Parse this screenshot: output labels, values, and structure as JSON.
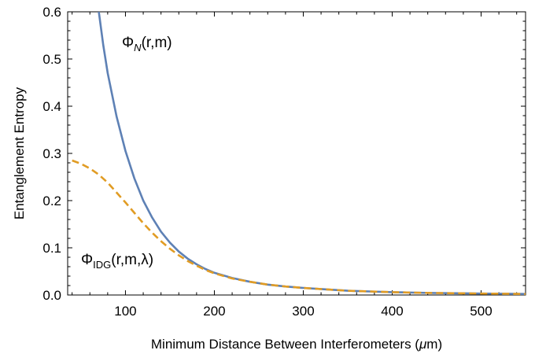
{
  "chart_data": {
    "type": "line",
    "xlabel_main": "Minimum Distance Between Interferometers (",
    "xlabel_mu": "μ",
    "xlabel_tail": "m)",
    "ylabel": "Entanglement Entropy",
    "xlim": [
      35,
      550
    ],
    "ylim": [
      0,
      0.6
    ],
    "x_ticks": [
      100,
      200,
      300,
      400,
      500
    ],
    "y_ticks": [
      0.0,
      0.1,
      0.2,
      0.3,
      0.4,
      0.5,
      0.6
    ],
    "y_tick_labels": [
      "0.0",
      "0.1",
      "0.2",
      "0.3",
      "0.4",
      "0.5",
      "0.6"
    ],
    "grid": false,
    "series": [
      {
        "label_base": "Φ",
        "label_sub": "N",
        "label_args": "(r,m)",
        "color": "#5E81B5",
        "dash": "solid",
        "x": [
          70,
          75,
          80,
          90,
          100,
          110,
          120,
          130,
          140,
          150,
          160,
          170,
          180,
          190,
          200,
          220,
          240,
          260,
          280,
          300,
          325,
          350,
          375,
          400,
          425,
          450,
          475,
          500,
          525,
          550
        ],
        "y": [
          0.6,
          0.53,
          0.47,
          0.378,
          0.305,
          0.247,
          0.2,
          0.164,
          0.134,
          0.111,
          0.092,
          0.077,
          0.065,
          0.055,
          0.047,
          0.036,
          0.028,
          0.022,
          0.018,
          0.015,
          0.012,
          0.009,
          0.0075,
          0.006,
          0.005,
          0.0042,
          0.0036,
          0.003,
          0.0026,
          0.0022
        ]
      },
      {
        "label_base": "Φ",
        "label_sub": "IDG",
        "label_args": "(r,m,λ)",
        "color": "#E19C24",
        "dash": "dashed",
        "x": [
          40,
          50,
          60,
          70,
          80,
          90,
          100,
          110,
          120,
          130,
          140,
          150,
          160,
          170,
          180,
          190,
          200,
          220,
          240,
          260,
          280,
          300,
          325,
          350,
          375,
          400,
          425,
          450,
          475,
          500,
          525,
          550
        ],
        "y": [
          0.285,
          0.278,
          0.268,
          0.255,
          0.238,
          0.217,
          0.196,
          0.174,
          0.152,
          0.132,
          0.114,
          0.098,
          0.084,
          0.072,
          0.062,
          0.053,
          0.046,
          0.035,
          0.028,
          0.022,
          0.018,
          0.015,
          0.012,
          0.009,
          0.0075,
          0.006,
          0.005,
          0.0042,
          0.0036,
          0.003,
          0.0026,
          0.0022
        ]
      }
    ]
  }
}
